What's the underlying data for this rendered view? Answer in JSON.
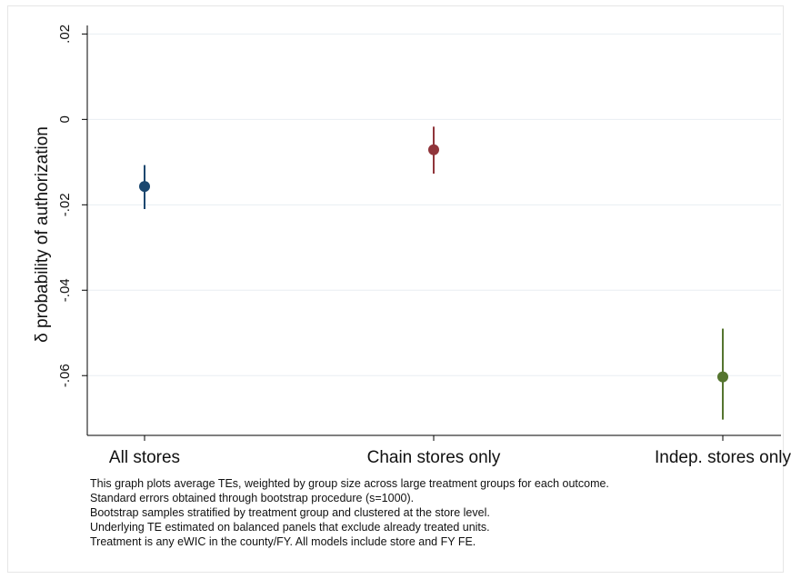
{
  "chart_data": {
    "type": "scatter",
    "ylabel": "δ probability of authorization",
    "xlabel": "",
    "ylim": [
      -0.074,
      0.022
    ],
    "yticks": [
      0.02,
      0,
      -0.02,
      -0.04,
      -0.06
    ],
    "ytick_labels": [
      ".02",
      "0",
      "-.02",
      "-.04",
      "-.06"
    ],
    "grid": true,
    "categories": [
      "All stores",
      "Chain stores only",
      "Indep. stores only"
    ],
    "points": [
      {
        "category": "All stores",
        "estimate": -0.0157,
        "ci_low": -0.021,
        "ci_high": -0.0107,
        "color": "#1a476f"
      },
      {
        "category": "Chain stores only",
        "estimate": -0.0071,
        "ci_low": -0.0127,
        "ci_high": -0.0017,
        "color": "#90353b"
      },
      {
        "category": "Indep. stores only",
        "estimate": -0.0603,
        "ci_low": -0.0703,
        "ci_high": -0.049,
        "color": "#55752f"
      }
    ]
  },
  "notes": [
    "This graph plots average TEs, weighted by group size across large treatment groups for each outcome.",
    "Standard errors obtained through bootstrap procedure (s=1000).",
    "Bootstrap samples stratified by treatment group and clustered at the store level.",
    "Underlying TE estimated on balanced panels that exclude already treated units.",
    "Treatment is any eWIC in the county/FY. All models include store and FY FE."
  ]
}
